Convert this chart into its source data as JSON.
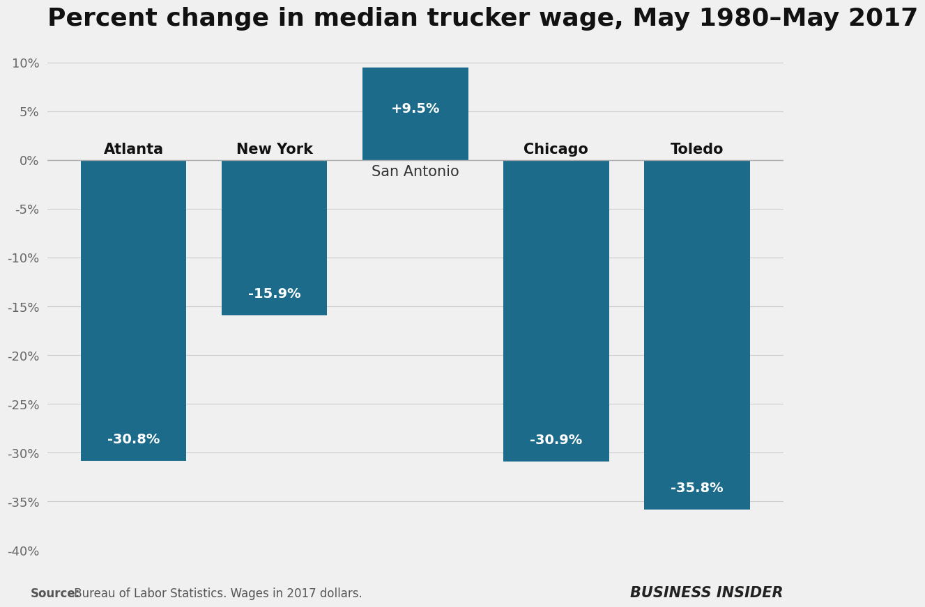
{
  "title": "Percent change in median trucker wage, May 1980–May 2017",
  "categories": [
    "Atlanta",
    "New York",
    "San Antonio",
    "Chicago",
    "Toledo"
  ],
  "values": [
    -30.8,
    -15.9,
    9.5,
    -30.9,
    -35.8
  ],
  "bar_color": "#1d6b8a",
  "label_color_inside": "#ffffff",
  "background_color": "#f0f0f0",
  "plot_background": "#f0f0f0",
  "ylim": [
    -40,
    12
  ],
  "yticks": [
    -40,
    -35,
    -30,
    -25,
    -20,
    -15,
    -10,
    -5,
    0,
    5,
    10
  ],
  "ytick_labels": [
    "-40%",
    "-35%",
    "-30%",
    "-25%",
    "-20%",
    "-15%",
    "-10%",
    "-5%",
    "0%",
    "5%",
    "10%"
  ],
  "source_bold": "Source:",
  "source_rest": " Bureau of Labor Statistics. Wages in 2017 dollars.",
  "watermark": "BUSINESS INSIDER",
  "title_fontsize": 26,
  "label_fontsize": 14,
  "city_label_fontsize": 15,
  "tick_fontsize": 13,
  "source_fontsize": 12,
  "watermark_fontsize": 15
}
